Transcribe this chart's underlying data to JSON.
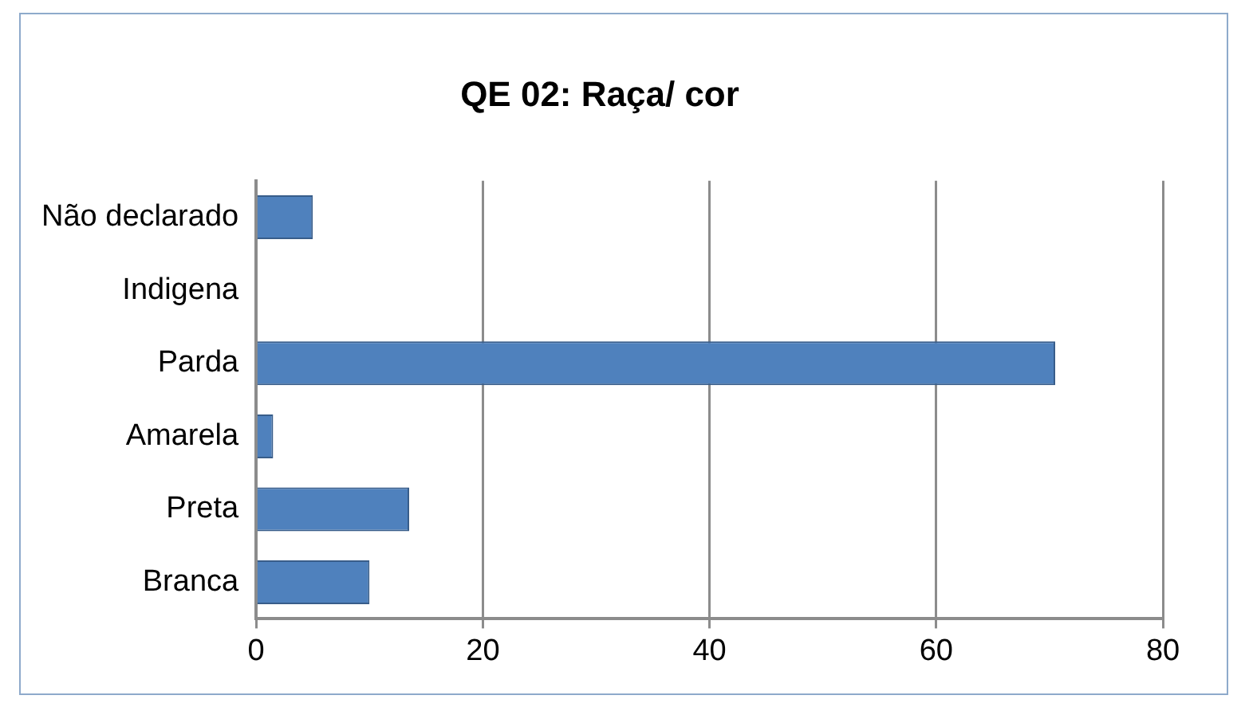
{
  "chart_data": {
    "type": "bar",
    "orientation": "horizontal",
    "title": "QE 02: Raça/ cor",
    "categories": [
      "Não declarado",
      "Indigena",
      "Parda",
      "Amarela",
      "Preta",
      "Branca"
    ],
    "values": [
      5,
      0,
      70.5,
      1.5,
      13.5,
      10
    ],
    "color": "#4f81bd",
    "xlim": [
      0,
      80
    ],
    "xticks": [
      0,
      20,
      40,
      60,
      80
    ],
    "grid": "x",
    "legend": false
  }
}
